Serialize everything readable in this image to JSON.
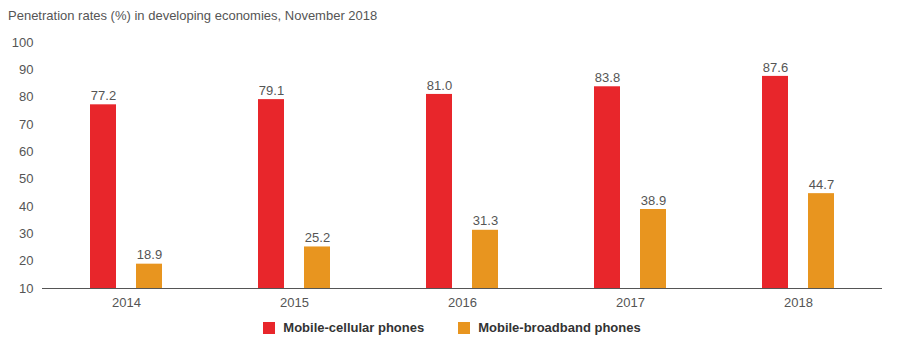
{
  "chart_data": {
    "type": "bar",
    "title": "Penetration rates (%) in developing economies, November 2018",
    "categories": [
      "2014",
      "2015",
      "2016",
      "2017",
      "2018"
    ],
    "series": [
      {
        "name": "Mobile-cellular phones",
        "color": "#e8262b",
        "values": [
          77.2,
          79.1,
          81.0,
          83.8,
          87.6
        ],
        "value_labels": [
          "77.2",
          "79.1",
          "81.0",
          "83.8",
          "87.6"
        ]
      },
      {
        "name": "Mobile-broadband phones",
        "color": "#e8951f",
        "values": [
          18.9,
          25.2,
          31.3,
          38.9,
          44.7
        ],
        "value_labels": [
          "18.9",
          "25.2",
          "31.3",
          "38.9",
          "44.7"
        ]
      }
    ],
    "ylim": [
      10,
      100
    ],
    "yticks": [
      10,
      20,
      30,
      40,
      50,
      60,
      70,
      80,
      90,
      100
    ],
    "grid": false,
    "data_labels": true,
    "legend": "bottom"
  }
}
